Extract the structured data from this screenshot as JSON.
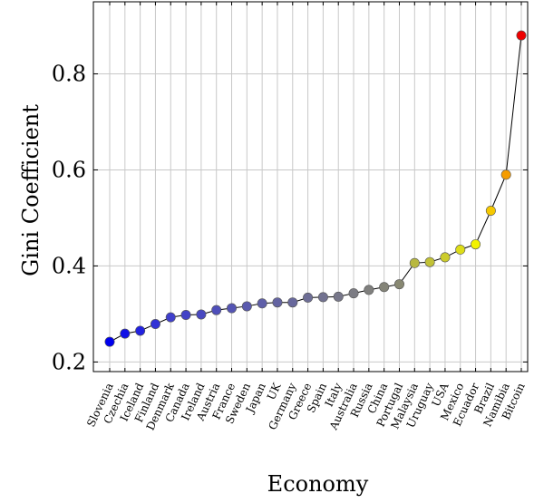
{
  "chart_data": {
    "type": "scatter",
    "title": "",
    "xlabel": "Economy",
    "ylabel": "Gini Coefficient",
    "ylim": [
      0.18,
      0.95
    ],
    "yticks": [
      "0.2",
      "0.4",
      "0.6",
      "0.8"
    ],
    "grid": true,
    "connected": true,
    "categories": [
      "Slovenia",
      "Czechia",
      "Iceland",
      "Finland",
      "Denmark",
      "Canada",
      "Ireland",
      "Austria",
      "France",
      "Sweden",
      "Japan",
      "UK",
      "Germany",
      "Greece",
      "Spain",
      "Italy",
      "Australia",
      "Russia",
      "China",
      "Portugal",
      "Malaysia",
      "Uruguay",
      "USA",
      "Mexico",
      "Ecuador",
      "Brazil",
      "Namibia",
      "Bitcoin"
    ],
    "values": [
      0.242,
      0.259,
      0.265,
      0.279,
      0.293,
      0.298,
      0.299,
      0.308,
      0.312,
      0.316,
      0.322,
      0.324,
      0.324,
      0.334,
      0.335,
      0.336,
      0.343,
      0.35,
      0.356,
      0.362,
      0.406,
      0.408,
      0.418,
      0.434,
      0.445,
      0.515,
      0.59,
      0.88
    ],
    "point_colors": [
      "#0000ee",
      "#1212e6",
      "#2222e0",
      "#3232d6",
      "#3f3fcc",
      "#4444c6",
      "#4848c0",
      "#4f4fba",
      "#5555b4",
      "#5a5aae",
      "#5f5fa8",
      "#6464a2",
      "#68689c",
      "#6e6e96",
      "#727290",
      "#77778a",
      "#7c7c84",
      "#80807e",
      "#848478",
      "#888872",
      "#b8b840",
      "#c2c236",
      "#cccc2c",
      "#dddd18",
      "#f2f200",
      "#f5c800",
      "#f59c00",
      "#ee0000"
    ]
  }
}
